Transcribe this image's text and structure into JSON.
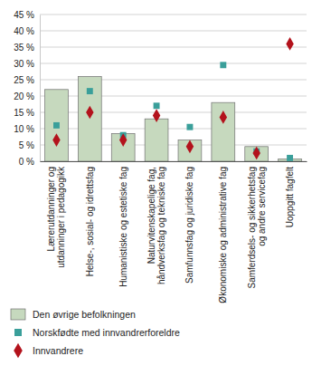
{
  "chart_data": {
    "type": "bar",
    "categories": [
      "Lærerutdanninger og\nutdanninger i pedagogikk",
      "Helse-, sosial- og idrettsfag",
      "Humanistiske og estetiske fag",
      "Naturvitenskapelige fag,\nhåndverksfag og tekniske fag",
      "Samfunnsfag og juridiske fag",
      "Økonomiske og administrative fag",
      "Samferdsels- og sikkerhetsfag\nog andre servicefag",
      "Uoppgitt fagfelt"
    ],
    "series": [
      {
        "name": "Den øvrige befolkningen",
        "type": "bar",
        "color": "#c6d9be",
        "values": [
          22,
          26,
          8.5,
          13,
          6.5,
          18,
          4.5,
          0.7
        ]
      },
      {
        "name": "Norskfødte med innvandrerforeldre",
        "type": "scatter",
        "marker": "square",
        "color": "#3a9f9a",
        "values": [
          11,
          21.5,
          8,
          17,
          10.5,
          29.5,
          3,
          1
        ]
      },
      {
        "name": "Innvandrere",
        "type": "scatter",
        "marker": "diamond",
        "color": "#b3121c",
        "values": [
          6.5,
          15,
          6.5,
          14,
          4.5,
          13.5,
          2.5,
          36
        ]
      }
    ],
    "ylim": [
      0,
      45
    ],
    "yticks": [
      {
        "value": 0,
        "label": "0 %"
      },
      {
        "value": 5,
        "label": "5 %"
      },
      {
        "value": 10,
        "label": "10 %"
      },
      {
        "value": 15,
        "label": "15 %"
      },
      {
        "value": 20,
        "label": "20 %"
      },
      {
        "value": 25,
        "label": "25 %"
      },
      {
        "value": 30,
        "label": "30 %"
      },
      {
        "value": 35,
        "label": "35 %"
      },
      {
        "value": 40,
        "label": "40 %"
      },
      {
        "value": 45,
        "label": "45 %"
      }
    ],
    "grid": true,
    "legend": "bottom"
  }
}
